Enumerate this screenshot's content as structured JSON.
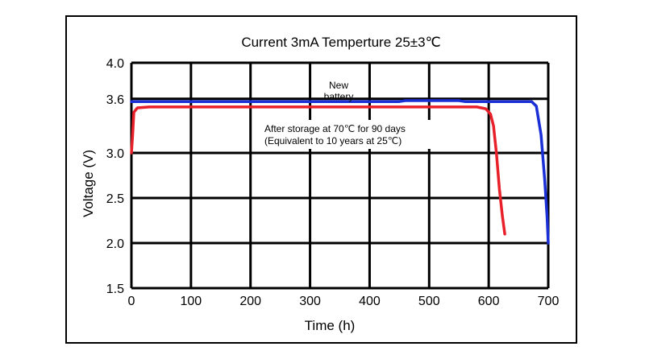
{
  "chart_data": {
    "type": "line",
    "title": "Current 3mA  Temperture 25±3℃",
    "xlabel": "Time (h)",
    "ylabel": "Voltage (V)",
    "xlim": [
      0,
      700
    ],
    "ylim": [
      1.5,
      4.0
    ],
    "xticks": [
      0,
      100,
      200,
      300,
      400,
      500,
      600,
      700
    ],
    "yticks": [
      1.5,
      2.0,
      2.5,
      3.0,
      3.6,
      4.0
    ],
    "ytick_labels": [
      "1.5",
      "2.0",
      "2.5",
      "3.0",
      "3.6",
      "4.0"
    ],
    "grid": true,
    "series": [
      {
        "name": "New battery",
        "color": "#1a2fd6",
        "points": [
          [
            0,
            3.57
          ],
          [
            20,
            3.57
          ],
          [
            100,
            3.57
          ],
          [
            200,
            3.57
          ],
          [
            300,
            3.57
          ],
          [
            400,
            3.57
          ],
          [
            450,
            3.57
          ],
          [
            460,
            3.58
          ],
          [
            500,
            3.58
          ],
          [
            550,
            3.58
          ],
          [
            560,
            3.57
          ],
          [
            600,
            3.57
          ],
          [
            650,
            3.57
          ],
          [
            672,
            3.57
          ],
          [
            680,
            3.52
          ],
          [
            688,
            3.2
          ],
          [
            694,
            2.7
          ],
          [
            698,
            2.3
          ],
          [
            700,
            2.0
          ]
        ]
      },
      {
        "name": "After storage at 70℃ for 90 days (Equivalent to 10 years at 25℃)",
        "color": "#e8202a",
        "points": [
          [
            0,
            3.0
          ],
          [
            2,
            3.2
          ],
          [
            4,
            3.45
          ],
          [
            10,
            3.5
          ],
          [
            30,
            3.51
          ],
          [
            100,
            3.51
          ],
          [
            200,
            3.51
          ],
          [
            300,
            3.51
          ],
          [
            400,
            3.51
          ],
          [
            500,
            3.51
          ],
          [
            580,
            3.51
          ],
          [
            595,
            3.49
          ],
          [
            603,
            3.43
          ],
          [
            608,
            3.3
          ],
          [
            613,
            3.0
          ],
          [
            618,
            2.6
          ],
          [
            623,
            2.3
          ],
          [
            627,
            2.1
          ]
        ]
      }
    ],
    "annotations": {
      "new_battery_line1": "New",
      "new_battery_line2": "battery",
      "storage_line1": "After storage at 70℃ for 90 days",
      "storage_line2": "(Equivalent to 10 years at 25℃)"
    }
  }
}
